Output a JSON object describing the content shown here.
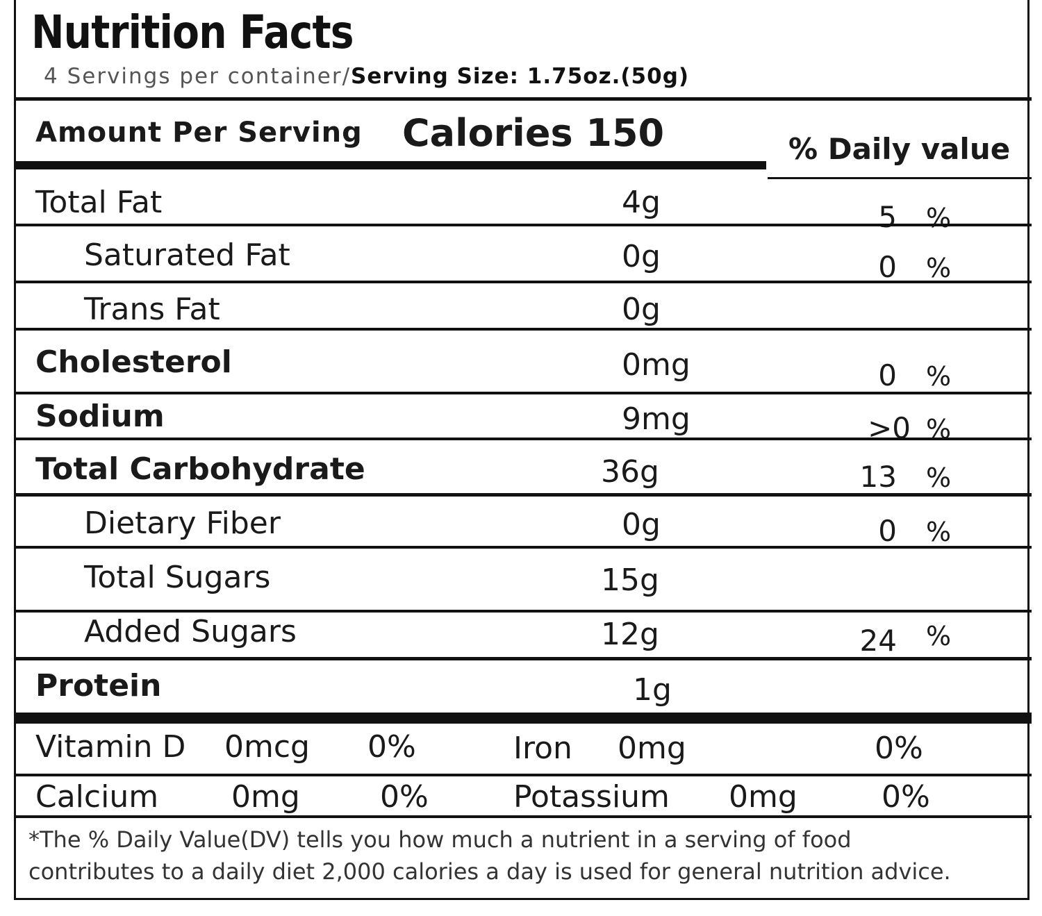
{
  "title": "Nutrition Facts",
  "servings": {
    "per_container": "4 Servings per container/",
    "size": "Serving Size: 1.75oz.(50g)"
  },
  "header": {
    "amount_per_serving": "Amount Per Serving",
    "calories": "Calories 150",
    "daily_value": "% Daily value"
  },
  "nutrients": [
    {
      "name": "Total Fat",
      "amount": "4g",
      "dv": "5",
      "pct": "%"
    },
    {
      "name": "Saturated Fat",
      "amount": "0g",
      "dv": "0",
      "pct": "%"
    },
    {
      "name": "Trans Fat",
      "amount": "0g",
      "dv": "",
      "pct": ""
    },
    {
      "name": "Cholesterol",
      "amount": "0mg",
      "dv": "0",
      "pct": "%"
    },
    {
      "name": "Sodium",
      "amount": "9mg",
      "dv": ">0",
      "pct": "%"
    },
    {
      "name": "Total Carbohydrate",
      "amount": "36g",
      "dv": "13",
      "pct": "%"
    },
    {
      "name": "Dietary Fiber",
      "amount": "0g",
      "dv": "0",
      "pct": "%"
    },
    {
      "name": "Total Sugars",
      "amount": "15g",
      "dv": "",
      "pct": ""
    },
    {
      "name": "Added Sugars",
      "amount": "12g",
      "dv": "24",
      "pct": "%"
    },
    {
      "name": "Protein",
      "amount": "1g",
      "dv": "",
      "pct": ""
    }
  ],
  "vitamins": [
    {
      "name": "Vitamin D",
      "amount": "0mcg",
      "dv": "0%"
    },
    {
      "name": "Iron",
      "amount": "0mg",
      "dv": "0%"
    },
    {
      "name": "Calcium",
      "amount": "0mg",
      "dv": "0%"
    },
    {
      "name": "Potassium",
      "amount": "0mg",
      "dv": "0%"
    }
  ],
  "footnote": {
    "line1": "*The % Daily Value(DV) tells you how much a nutrient in a serving of food",
    "line2": "contributes to a daily diet 2,000 calories a day is used for general nutrition advice."
  }
}
